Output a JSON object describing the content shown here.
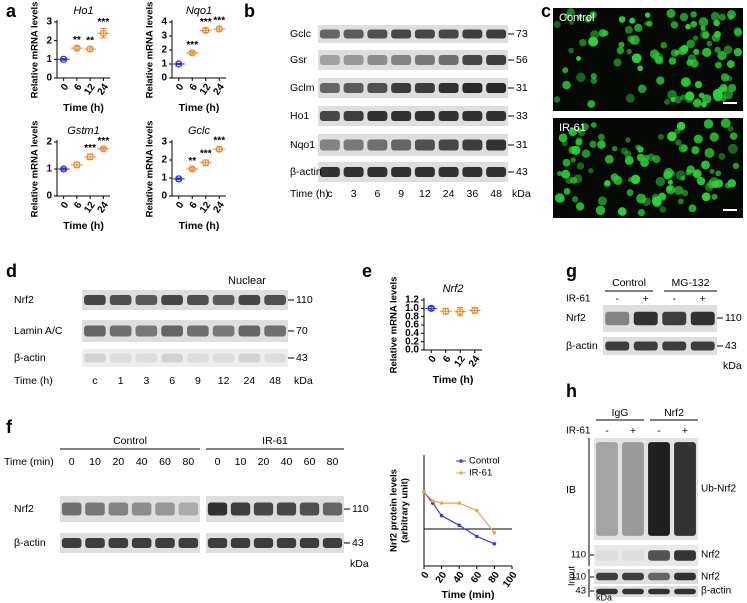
{
  "panel_labels": [
    "a",
    "b",
    "c",
    "d",
    "e",
    "f",
    "g",
    "h"
  ],
  "chart_data": [
    {
      "type": "dot",
      "title": "Ho1",
      "ylabel": "Relative mRNA levels",
      "xlabel": "Time (h)",
      "categories": [
        "0",
        "6",
        "12",
        "24"
      ],
      "values": [
        1.0,
        1.6,
        1.55,
        2.4
      ],
      "errors": [
        0.05,
        0.1,
        0.12,
        0.25
      ],
      "colors": [
        "#2b2bd8",
        "#e8892b",
        "#e8892b",
        "#e8892b"
      ],
      "annotations": [
        null,
        "**",
        "**",
        "***"
      ],
      "ylim": [
        0,
        3
      ],
      "yticks": [
        0,
        1,
        2,
        3
      ]
    },
    {
      "type": "dot",
      "title": "Nqo1",
      "ylabel": "Relative mRNA levels",
      "xlabel": "Time (h)",
      "categories": [
        "0",
        "6",
        "12",
        "24"
      ],
      "values": [
        1.0,
        1.8,
        3.4,
        3.5
      ],
      "errors": [
        0.05,
        0.1,
        0.15,
        0.15
      ],
      "colors": [
        "#2b2bd8",
        "#e8892b",
        "#e8892b",
        "#e8892b"
      ],
      "annotations": [
        null,
        "***",
        "***",
        "***"
      ],
      "ylim": [
        0,
        4
      ],
      "yticks": [
        0,
        1,
        2,
        3,
        4
      ]
    },
    {
      "type": "dot",
      "title": "Gstm1",
      "ylabel": "Relative mRNA levels",
      "xlabel": "Time (h)",
      "categories": [
        "0",
        "6",
        "12",
        "24"
      ],
      "values": [
        1.0,
        1.15,
        1.45,
        1.75
      ],
      "errors": [
        0.04,
        0.1,
        0.1,
        0.05
      ],
      "colors": [
        "#2b2bd8",
        "#e8892b",
        "#e8892b",
        "#e8892b"
      ],
      "annotations": [
        null,
        null,
        "***",
        "***"
      ],
      "ylim": [
        0,
        2
      ],
      "yticks": [
        0,
        1,
        2
      ]
    },
    {
      "type": "dot",
      "title": "Gclc",
      "ylabel": "Relative mRNA levels",
      "xlabel": "Time (h)",
      "categories": [
        "0",
        "6",
        "12",
        "24"
      ],
      "values": [
        0.95,
        1.5,
        1.85,
        2.6
      ],
      "errors": [
        0.05,
        0.08,
        0.15,
        0.12
      ],
      "colors": [
        "#2b2bd8",
        "#e8892b",
        "#e8892b",
        "#e8892b"
      ],
      "annotations": [
        null,
        "**",
        "***",
        "***"
      ],
      "ylim": [
        0,
        3
      ],
      "yticks": [
        0,
        1,
        2,
        3
      ]
    },
    {
      "type": "dot",
      "title": "Nrf2",
      "ylabel": "Relative mRNA levels",
      "xlabel": "Time (h)",
      "categories": [
        "0",
        "6",
        "12",
        "24"
      ],
      "values": [
        1.0,
        0.93,
        0.92,
        0.95
      ],
      "errors": [
        0.04,
        0.07,
        0.1,
        0.07
      ],
      "colors": [
        "#2b2bd8",
        "#e8892b",
        "#e8892b",
        "#e8892b"
      ],
      "ylim": [
        0,
        1.2
      ],
      "yticks": [
        {
          "value": 0,
          "label": "0.0"
        },
        0.2,
        0.4,
        0.6,
        0.8,
        {
          "value": 1,
          "label": "1.0"
        },
        1.2
      ]
    },
    {
      "type": "line",
      "ylabel": [
        "Nrf2 protein levels",
        "(arbitrary unit)"
      ],
      "xlabel": "Time (min)",
      "x": [
        0,
        10,
        20,
        40,
        60,
        80
      ],
      "series": [
        {
          "name": "Control",
          "color": "#3a3ae0",
          "values": [
            1.0,
            0.85,
            0.68,
            0.55,
            0.4,
            0.3
          ]
        },
        {
          "name": "IR-61",
          "color": "#f0a050",
          "values": [
            1.0,
            0.88,
            0.85,
            0.85,
            0.75,
            0.45
          ]
        }
      ],
      "xlim": [
        0,
        100
      ],
      "xticks": [
        0,
        20,
        40,
        60,
        80,
        100
      ],
      "ylim": [
        0,
        1.5
      ],
      "reference_line": 0.5,
      "legend": "upper right"
    }
  ],
  "blots": {
    "b": {
      "rows": [
        "Gclc",
        "Gsr",
        "Gclm",
        "Ho1",
        "Nqo1",
        "β-actin"
      ],
      "mw": [
        "73",
        "56",
        "31",
        "33",
        "31",
        "43"
      ],
      "axis_label": "Time (h)",
      "lanes": [
        "c",
        "3",
        "6",
        "9",
        "12",
        "24",
        "36",
        "48"
      ],
      "unit": "kDa"
    },
    "c": {
      "images": [
        "Control",
        "IR-61"
      ]
    },
    "d": {
      "title": "Nuclear",
      "rows": [
        "Nrf2",
        "Lamin A/C",
        "β-actin"
      ],
      "mw": [
        "110",
        "70",
        "43"
      ],
      "axis_label": "Time (h)",
      "lanes": [
        "c",
        "1",
        "3",
        "6",
        "9",
        "12",
        "24",
        "48"
      ],
      "unit": "kDa"
    },
    "f": {
      "groups": [
        "Control",
        "IR-61"
      ],
      "axis_label": "Time (min)",
      "lanes": [
        "0",
        "10",
        "20",
        "40",
        "60",
        "80",
        "0",
        "10",
        "20",
        "40",
        "60",
        "80"
      ],
      "rows": [
        "Nrf2",
        "β-actin"
      ],
      "mw": [
        "110",
        "43"
      ],
      "unit": "kDa"
    },
    "g": {
      "groups": [
        "Control",
        "MG-132"
      ],
      "treatment": "IR-61",
      "lanes": [
        "-",
        "+",
        "-",
        "+"
      ],
      "rows": [
        "Nrf2",
        "β-actin"
      ],
      "mw": [
        "110",
        "43"
      ],
      "unit": "kDa"
    },
    "h": {
      "groups": [
        "IgG",
        "Nrf2"
      ],
      "treatment": "IR-61",
      "lanes": [
        "-",
        "+",
        "-",
        "+"
      ],
      "sections": [
        "IB",
        "Input"
      ],
      "rows": [
        "Ub-Nrf2",
        "Nrf2",
        "Nrf2",
        "β-actin"
      ],
      "mw": [
        "110",
        "110",
        "43"
      ],
      "unit": "kDa"
    }
  }
}
